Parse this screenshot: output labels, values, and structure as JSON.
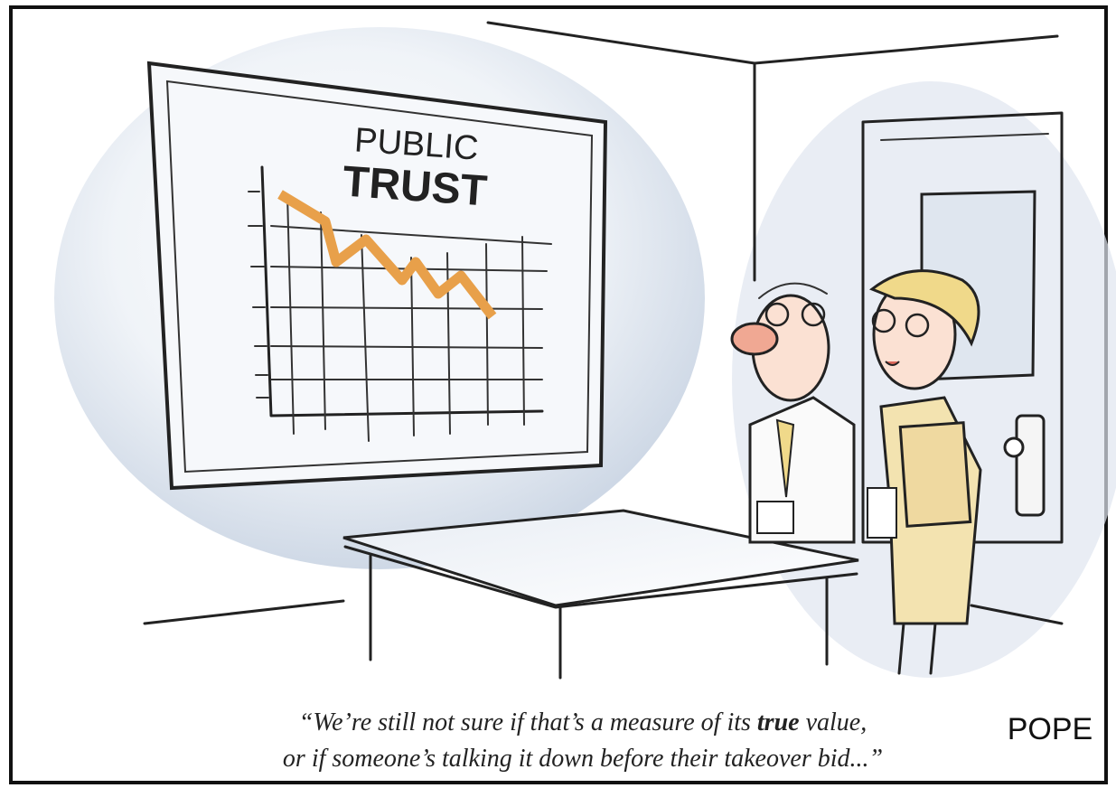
{
  "board": {
    "title": [
      "PUBLIC",
      "TRUST"
    ]
  },
  "caption": {
    "line1": [
      "“We’re still not sure if that’s a measure of its ",
      "true",
      " value,"
    ],
    "line2": "or if someone’s talking it down before their takeover bid...”"
  },
  "signature": "POPE"
}
